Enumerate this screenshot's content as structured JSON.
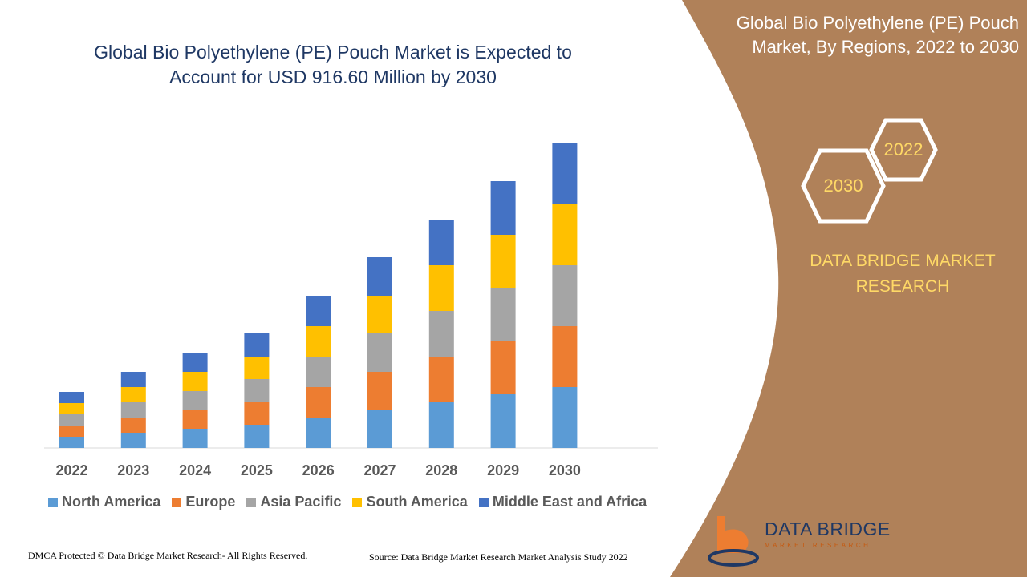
{
  "header": {
    "title_line1": "Global Bio Polyethylene (PE) Pouch Market is Expected to",
    "title_line2": "Account for USD 916.60 Million by 2030"
  },
  "side_panel": {
    "title_line1": "Global Bio Polyethylene (PE) Pouch",
    "title_line2": "Market, By Regions, 2022 to 2030",
    "hex_start": "2022",
    "hex_end": "2030",
    "brand_line1": "DATA BRIDGE MARKET",
    "brand_line2": "RESEARCH",
    "panel_color": "#b08159",
    "accent_color": "#ffd966"
  },
  "footer": {
    "copyright": "DMCA Protected © Data Bridge Market Research- All Rights Reserved.",
    "source": "Source: Data Bridge Market Research Market Analysis Study 2022"
  },
  "logo": {
    "name": "DATA BRIDGE",
    "tagline": "MARKET RESEARCH",
    "icon": "data-bridge-logo-icon"
  },
  "chart_data": {
    "type": "bar",
    "stacked": true,
    "categories": [
      "2022",
      "2023",
      "2024",
      "2025",
      "2026",
      "2027",
      "2028",
      "2029",
      "2030"
    ],
    "series": [
      {
        "name": "North America",
        "color": "#5b9bd5",
        "values": [
          14,
          19,
          24,
          29,
          38,
          48,
          57,
          67,
          76
        ]
      },
      {
        "name": "Europe",
        "color": "#ed7d31",
        "values": [
          14,
          19,
          24,
          28,
          38,
          47,
          57,
          66,
          76
        ]
      },
      {
        "name": "Asia Pacific",
        "color": "#a5a5a5",
        "values": [
          14,
          19,
          23,
          29,
          38,
          48,
          57,
          67,
          76
        ]
      },
      {
        "name": "South America",
        "color": "#ffc000",
        "values": [
          14,
          19,
          24,
          28,
          38,
          47,
          57,
          66,
          76
        ]
      },
      {
        "name": "Middle East and Africa",
        "color": "#4472c4",
        "values": [
          14,
          19,
          24,
          29,
          38,
          48,
          57,
          67,
          76
        ]
      }
    ],
    "title": "Global Bio Polyethylene (PE) Pouch Market is Expected to Account for USD 916.60 Million by 2030",
    "xlabel": "",
    "ylabel": "",
    "ylim": [
      0,
      400
    ],
    "grid": false,
    "legend_position": "bottom"
  }
}
